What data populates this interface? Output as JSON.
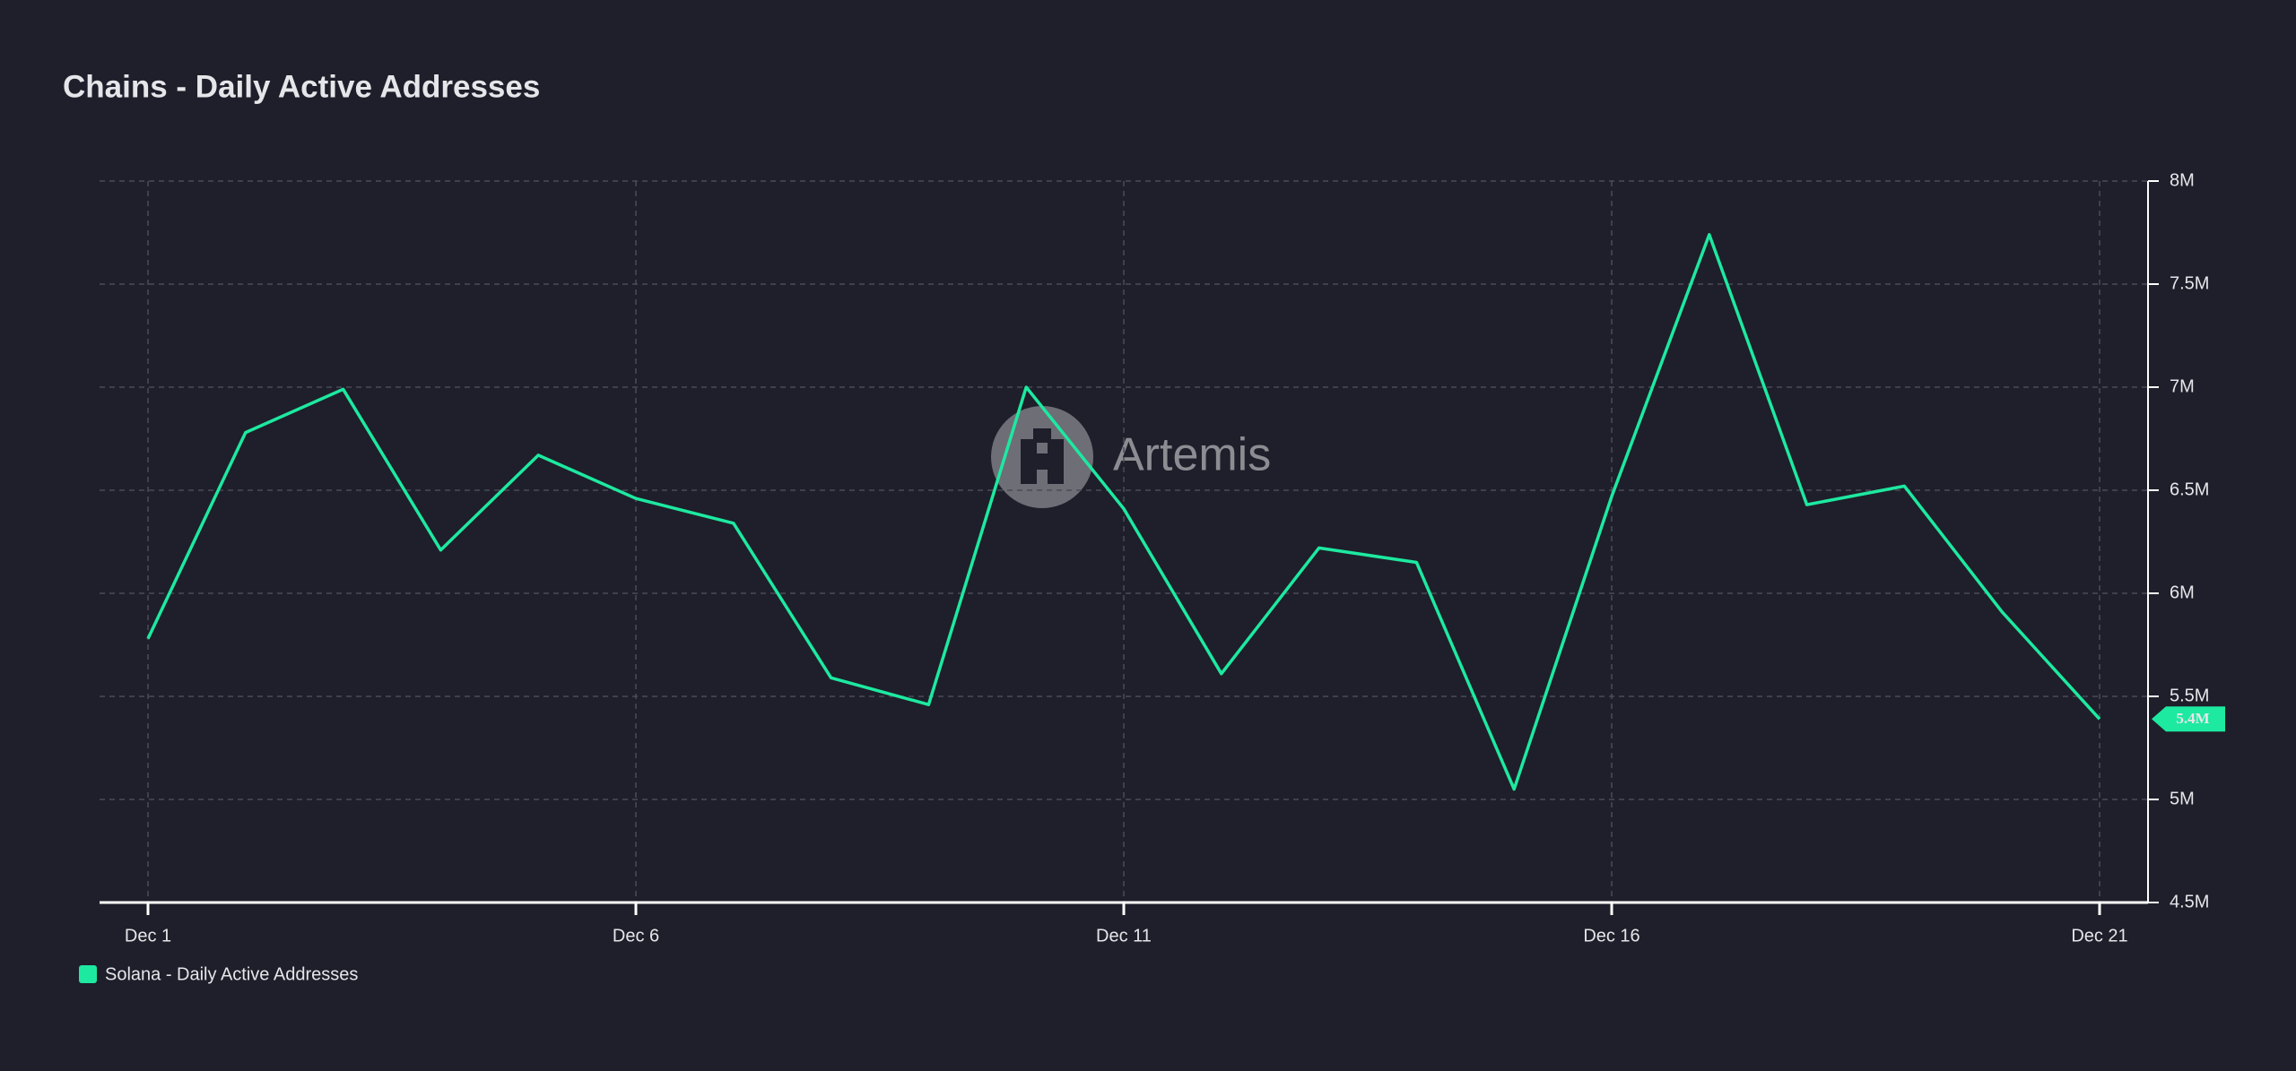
{
  "chart_data": {
    "type": "line",
    "title": "Chains - Daily Active Addresses",
    "watermark": "Artemis",
    "categories": [
      "Dec 1",
      null,
      null,
      null,
      null,
      "Dec 6",
      null,
      null,
      null,
      null,
      "Dec 11",
      null,
      null,
      null,
      null,
      "Dec 16",
      null,
      null,
      null,
      null,
      "Dec 21"
    ],
    "series": [
      {
        "name": "Solana - Daily Active Addresses",
        "color": "#1de9a0",
        "values": [
          5780000,
          6780000,
          6990000,
          6210000,
          6670000,
          6460000,
          6340000,
          5590000,
          5460000,
          7000000,
          6410000,
          5610000,
          6220000,
          6150000,
          5050000,
          6470000,
          7740000,
          6430000,
          6520000,
          5910000,
          5390000
        ],
        "value_labels": [
          null,
          null,
          null,
          null,
          null,
          null,
          null,
          null,
          null,
          null,
          null,
          null,
          null,
          null,
          null,
          null,
          null,
          null,
          null,
          null,
          "5.4M"
        ]
      }
    ],
    "ylim": [
      4500000,
      8000000
    ],
    "yticks": [
      {
        "value": 4500000,
        "label": "4.5M"
      },
      {
        "value": 5000000,
        "label": "5M"
      },
      {
        "value": 5500000,
        "label": "5.5M"
      },
      {
        "value": 6000000,
        "label": "6M"
      },
      {
        "value": 6500000,
        "label": "6.5M"
      },
      {
        "value": 7000000,
        "label": "7M"
      },
      {
        "value": 7500000,
        "label": "7.5M"
      },
      {
        "value": 8000000,
        "label": "8M"
      }
    ],
    "grid": true
  }
}
